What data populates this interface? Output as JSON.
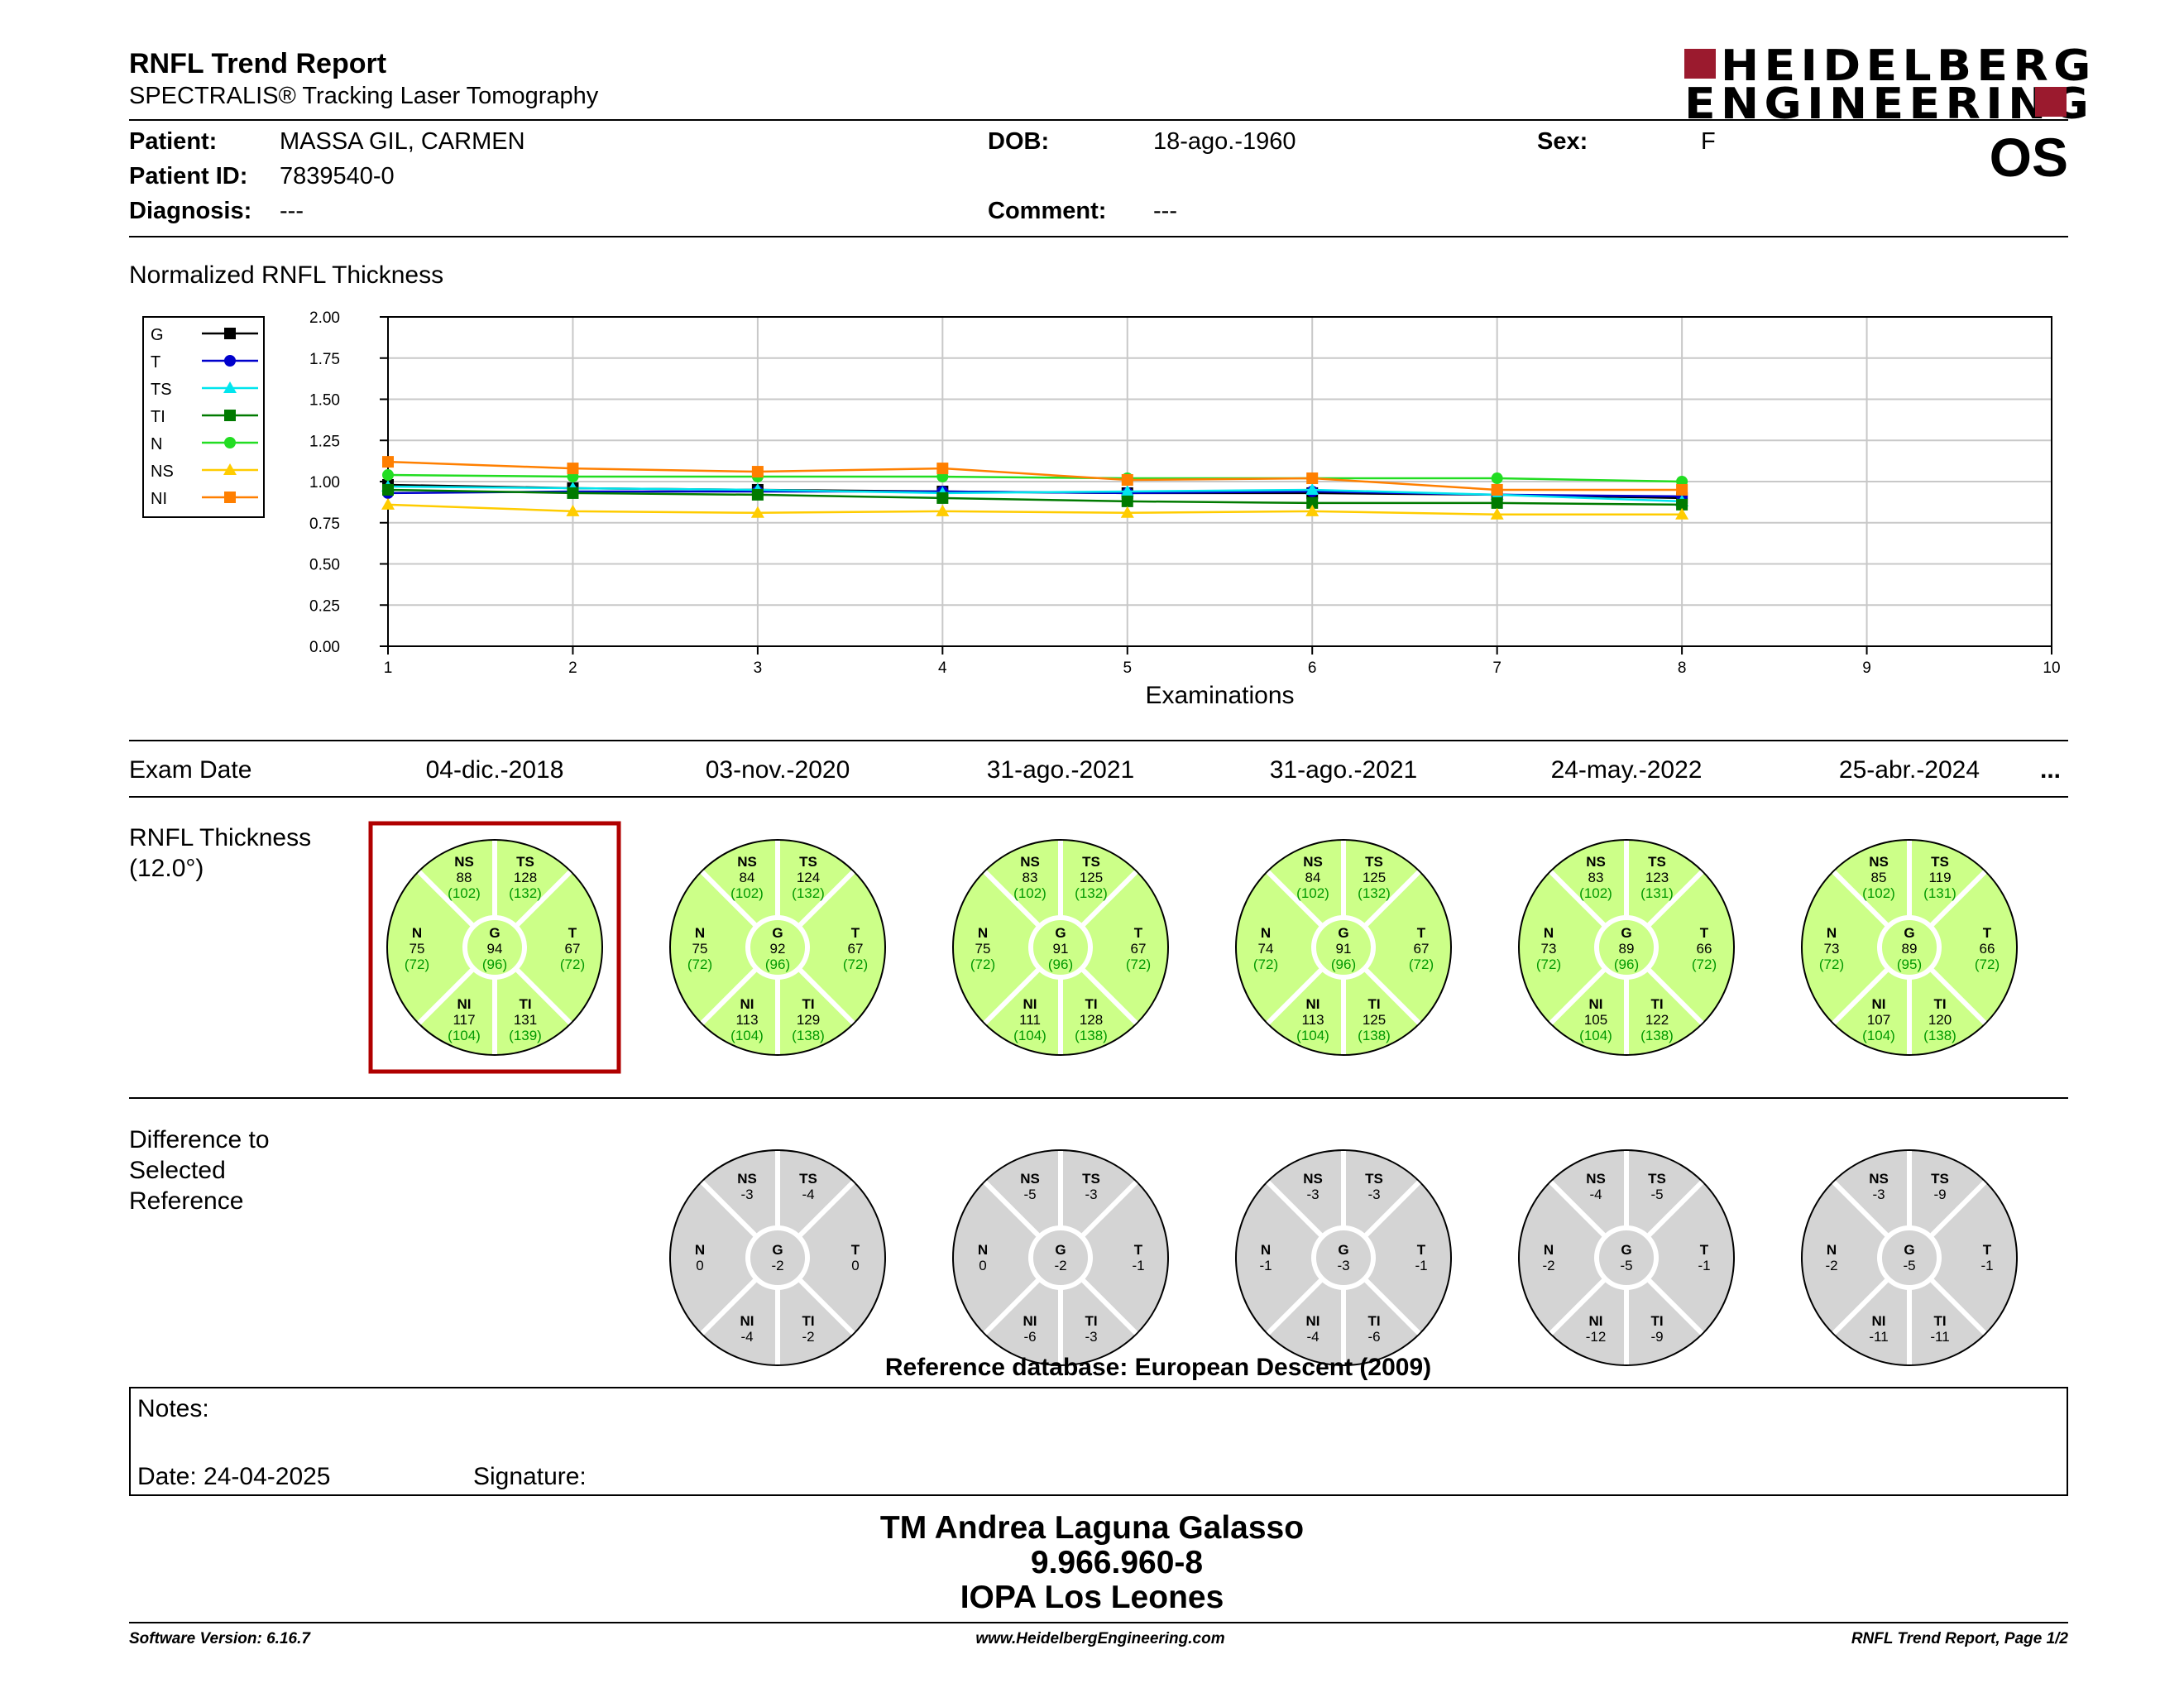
{
  "header": {
    "title": "RNFL Trend Report",
    "subtitle": "SPECTRALIS® Tracking Laser Tomography",
    "logo_line1": "HEIDELBERG",
    "logo_line2": "ENGINEERING",
    "eye": "OS"
  },
  "patient": {
    "patient_label": "Patient:",
    "patient_value": "MASSA GIL, CARMEN",
    "id_label": "Patient ID:",
    "id_value": "7839540-0",
    "diagnosis_label": "Diagnosis:",
    "diagnosis_value": "---",
    "dob_label": "DOB:",
    "dob_value": "18-ago.-1960",
    "comment_label": "Comment:",
    "comment_value": "---",
    "sex_label": "Sex:",
    "sex_value": "F"
  },
  "chart_section": {
    "heading": "Normalized RNFL Thickness"
  },
  "chart_data": {
    "type": "line",
    "xlabel": "Examinations",
    "ylabel": "",
    "xlim": [
      1,
      10
    ],
    "ylim": [
      0,
      2
    ],
    "xticks": [
      "1",
      "2",
      "3",
      "4",
      "5",
      "6",
      "7",
      "8",
      "9",
      "10"
    ],
    "yticks": [
      "0.00",
      "0.25",
      "0.50",
      "0.75",
      "1.00",
      "1.25",
      "1.50",
      "1.75",
      "2.00"
    ],
    "grid": true,
    "legend_position": "left",
    "x": [
      1,
      2,
      3,
      4,
      5,
      6,
      7,
      8
    ],
    "series": [
      {
        "name": "G",
        "color": "#000000",
        "marker": "square",
        "values": [
          0.98,
          0.96,
          0.95,
          0.94,
          0.93,
          0.93,
          0.92,
          0.9
        ]
      },
      {
        "name": "T",
        "color": "#0000cc",
        "marker": "circle",
        "values": [
          0.93,
          0.94,
          0.94,
          0.94,
          0.93,
          0.94,
          0.92,
          0.91
        ]
      },
      {
        "name": "TS",
        "color": "#00e5ee",
        "marker": "triangle",
        "values": [
          0.97,
          0.96,
          0.95,
          0.93,
          0.94,
          0.95,
          0.92,
          0.88
        ]
      },
      {
        "name": "TI",
        "color": "#007a00",
        "marker": "square",
        "values": [
          0.95,
          0.93,
          0.92,
          0.9,
          0.88,
          0.87,
          0.87,
          0.86
        ]
      },
      {
        "name": "N",
        "color": "#22dd22",
        "marker": "circle",
        "values": [
          1.04,
          1.03,
          1.03,
          1.03,
          1.02,
          1.02,
          1.02,
          1.0
        ]
      },
      {
        "name": "NS",
        "color": "#ffcc00",
        "marker": "triangle",
        "values": [
          0.86,
          0.82,
          0.81,
          0.82,
          0.81,
          0.82,
          0.8,
          0.8
        ]
      },
      {
        "name": "NI",
        "color": "#ff7f00",
        "marker": "square",
        "values": [
          1.12,
          1.08,
          1.06,
          1.08,
          1.01,
          1.02,
          0.95,
          0.95
        ]
      }
    ]
  },
  "exams": {
    "label": "Exam Date",
    "dates": [
      "04-dic.-2018",
      "03-nov.-2020",
      "31-ago.-2021",
      "31-ago.-2021",
      "24-may.-2022",
      "25-abr.-2024"
    ],
    "more": "..."
  },
  "rnfl": {
    "label_line1": "RNFL Thickness",
    "label_line2": "(12.0°)",
    "fill_color": "#ccff88",
    "normal_text_color": "#009900",
    "selected_index": 0,
    "selected_color": "#b00000",
    "charts": [
      {
        "NS": [
          "88",
          "(102)"
        ],
        "TS": [
          "128",
          "(132)"
        ],
        "N": [
          "75",
          "(72)"
        ],
        "G": [
          "94",
          "(96)"
        ],
        "T": [
          "67",
          "(72)"
        ],
        "NI": [
          "117",
          "(104)"
        ],
        "TI": [
          "131",
          "(139)"
        ]
      },
      {
        "NS": [
          "84",
          "(102)"
        ],
        "TS": [
          "124",
          "(132)"
        ],
        "N": [
          "75",
          "(72)"
        ],
        "G": [
          "92",
          "(96)"
        ],
        "T": [
          "67",
          "(72)"
        ],
        "NI": [
          "113",
          "(104)"
        ],
        "TI": [
          "129",
          "(138)"
        ]
      },
      {
        "NS": [
          "83",
          "(102)"
        ],
        "TS": [
          "125",
          "(132)"
        ],
        "N": [
          "75",
          "(72)"
        ],
        "G": [
          "91",
          "(96)"
        ],
        "T": [
          "67",
          "(72)"
        ],
        "NI": [
          "111",
          "(104)"
        ],
        "TI": [
          "128",
          "(138)"
        ]
      },
      {
        "NS": [
          "84",
          "(102)"
        ],
        "TS": [
          "125",
          "(132)"
        ],
        "N": [
          "74",
          "(72)"
        ],
        "G": [
          "91",
          "(96)"
        ],
        "T": [
          "67",
          "(72)"
        ],
        "NI": [
          "113",
          "(104)"
        ],
        "TI": [
          "125",
          "(138)"
        ]
      },
      {
        "NS": [
          "83",
          "(102)"
        ],
        "TS": [
          "123",
          "(131)"
        ],
        "N": [
          "73",
          "(72)"
        ],
        "G": [
          "89",
          "(96)"
        ],
        "T": [
          "66",
          "(72)"
        ],
        "NI": [
          "105",
          "(104)"
        ],
        "TI": [
          "122",
          "(138)"
        ]
      },
      {
        "NS": [
          "85",
          "(102)"
        ],
        "TS": [
          "119",
          "(131)"
        ],
        "N": [
          "73",
          "(72)"
        ],
        "G": [
          "89",
          "(95)"
        ],
        "T": [
          "66",
          "(72)"
        ],
        "NI": [
          "107",
          "(104)"
        ],
        "TI": [
          "120",
          "(138)"
        ]
      }
    ]
  },
  "difference": {
    "label_line1": "Difference to",
    "label_line2": "Selected",
    "label_line3": "Reference",
    "fill_color": "#d4d4d4",
    "charts": [
      {
        "NS": "-3",
        "TS": "-4",
        "N": "0",
        "G": "-2",
        "T": "0",
        "NI": "-4",
        "TI": "-2"
      },
      {
        "NS": "-5",
        "TS": "-3",
        "N": "0",
        "G": "-2",
        "T": "-1",
        "NI": "-6",
        "TI": "-3"
      },
      {
        "NS": "-3",
        "TS": "-3",
        "N": "-1",
        "G": "-3",
        "T": "-1",
        "NI": "-4",
        "TI": "-6"
      },
      {
        "NS": "-4",
        "TS": "-5",
        "N": "-2",
        "G": "-5",
        "T": "-1",
        "NI": "-12",
        "TI": "-9"
      },
      {
        "NS": "-3",
        "TS": "-9",
        "N": "-2",
        "G": "-5",
        "T": "-1",
        "NI": "-11",
        "TI": "-11"
      }
    ]
  },
  "reference_db": "Reference database: European Descent (2009)",
  "notes": {
    "label": "Notes:",
    "date": "Date: 24-04-2025",
    "signature": "Signature:"
  },
  "stamp": {
    "line1": "TM Andrea Laguna Galasso",
    "line2": "9.966.960-8",
    "line3": "IOPA Los Leones"
  },
  "footer": {
    "version": "Software Version: 6.16.7",
    "url": "www.HeidelbergEngineering.com",
    "page": "RNFL Trend Report, Page 1/2"
  },
  "colors": {
    "brand": "#9b1a2e",
    "selected_frame": "#b00000"
  }
}
